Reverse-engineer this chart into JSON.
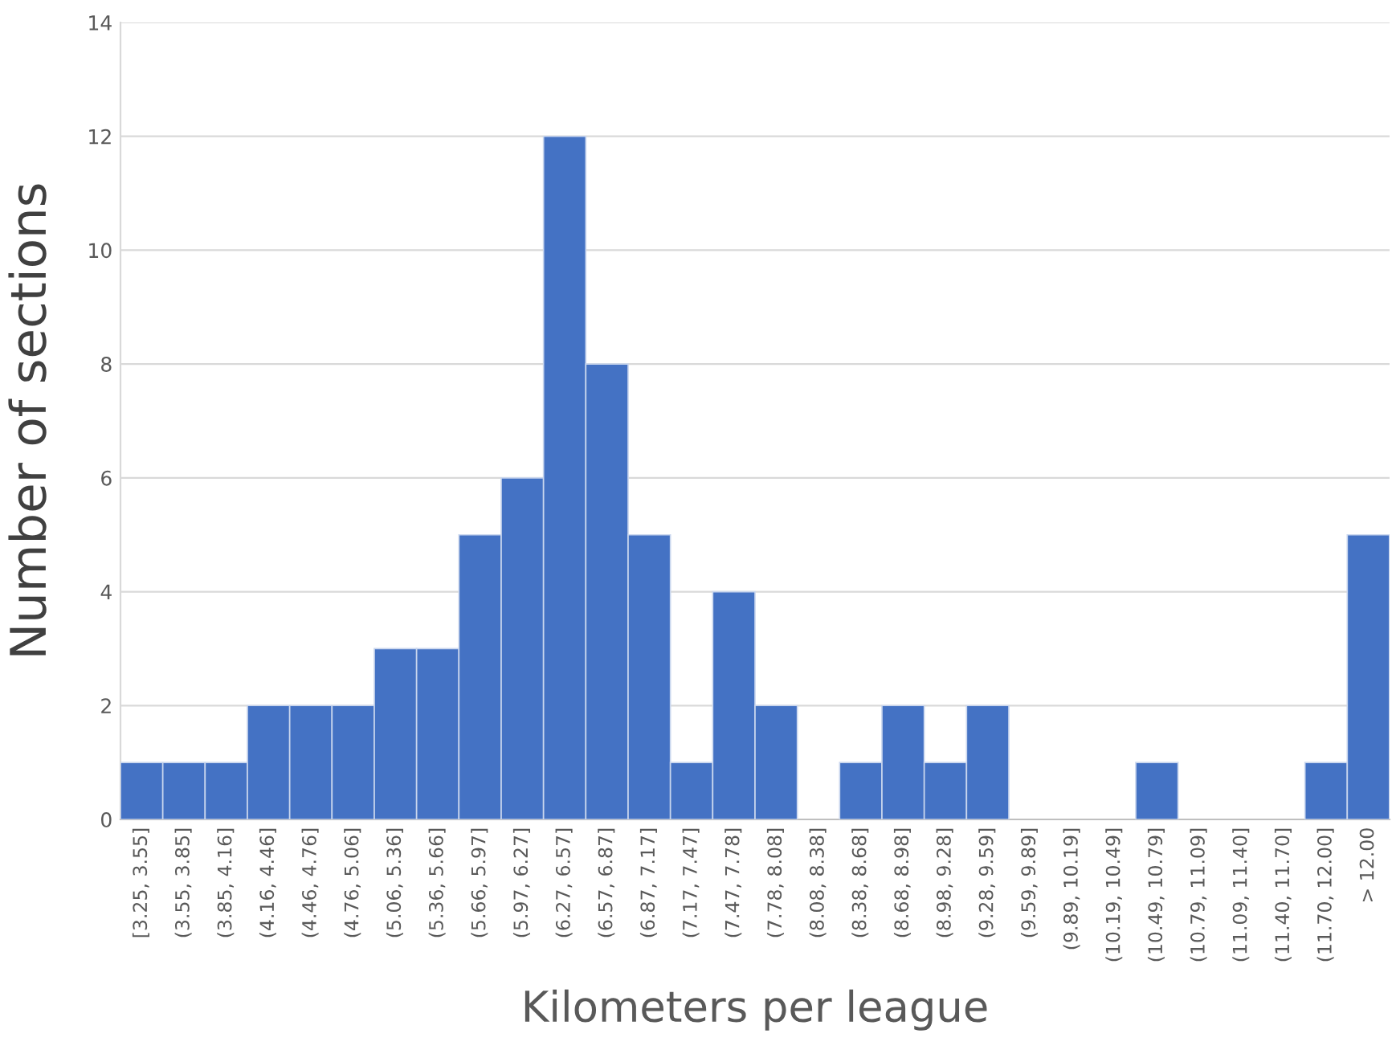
{
  "chart_data": {
    "type": "bar",
    "xlabel": "Kilometers per league",
    "ylabel": "Number of sections",
    "categories": [
      "[3.25, 3.55]",
      "(3.55, 3.85]",
      "(3.85, 4.16]",
      "(4.16, 4.46]",
      "(4.46, 4.76]",
      "(4.76, 5.06]",
      "(5.06, 5.36]",
      "(5.36, 5.66]",
      "(5.66, 5.97]",
      "(5.97, 6.27]",
      "(6.27, 6.57]",
      "(6.57, 6.87]",
      "(6.87, 7.17]",
      "(7.17, 7.47]",
      "(7.47, 7.78]",
      "(7.78, 8.08]",
      "(8.08, 8.38]",
      "(8.38, 8.68]",
      "(8.68, 8.98]",
      "(8.98, 9.28]",
      "(9.28, 9.59]",
      "(9.59, 9.89]",
      "(9.89, 10.19]",
      "(10.19, 10.49]",
      "(10.49, 10.79]",
      "(10.79, 11.09]",
      "(11.09, 11.40]",
      "(11.40, 11.70]",
      "(11.70, 12.00]",
      "> 12.00"
    ],
    "values": [
      1,
      1,
      1,
      2,
      2,
      2,
      3,
      3,
      5,
      6,
      12,
      8,
      5,
      1,
      4,
      2,
      0,
      1,
      2,
      1,
      2,
      0,
      0,
      0,
      1,
      0,
      0,
      0,
      1,
      5
    ],
    "color": "#4472c4",
    "ylim": [
      0,
      14
    ],
    "yticks": [
      0,
      2,
      4,
      6,
      8,
      10,
      12,
      14
    ],
    "grid": "y"
  }
}
